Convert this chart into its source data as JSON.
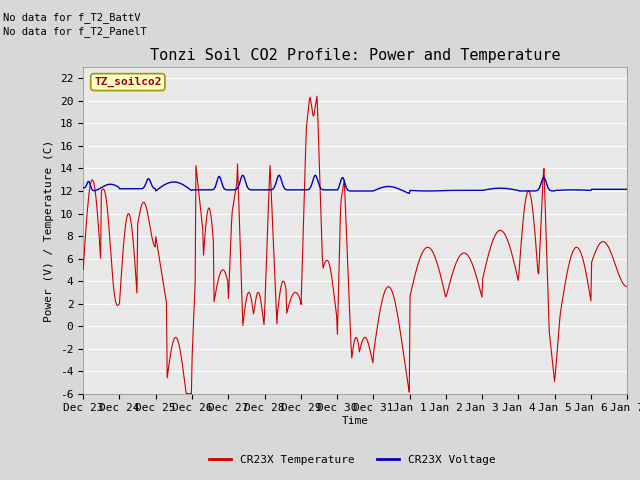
{
  "title": "Tonzi Soil CO2 Profile: Power and Temperature",
  "ylabel": "Power (V) / Temperature (C)",
  "xlabel": "Time",
  "ylim": [
    -6,
    23
  ],
  "yticks": [
    -6,
    -4,
    -2,
    0,
    2,
    4,
    6,
    8,
    10,
    12,
    14,
    16,
    18,
    20,
    22
  ],
  "xtick_labels": [
    "Dec 23",
    "Dec 24",
    "Dec 25",
    "Dec 26",
    "Dec 27",
    "Dec 28",
    "Dec 29",
    "Dec 30",
    "Dec 31",
    "Jan 1",
    "Jan 2",
    "Jan 3",
    "Jan 4",
    "Jan 5",
    "Jan 6",
    "Jan 7"
  ],
  "legend_label_red": "CR23X Temperature",
  "legend_label_blue": "CR23X Voltage",
  "legend_box_label": "TZ_soilco2",
  "no_data_text1": "No data for f_T2_BattV",
  "no_data_text2": "No data for f_T2_PanelT",
  "bg_color": "#d8d8d8",
  "plot_bg_color": "#e8e8e8",
  "red_color": "#cc0000",
  "blue_color": "#0000bb",
  "grid_color": "#ffffff",
  "title_fontsize": 11,
  "tick_fontsize": 8,
  "label_fontsize": 8,
  "nodata_fontsize": 7.5
}
